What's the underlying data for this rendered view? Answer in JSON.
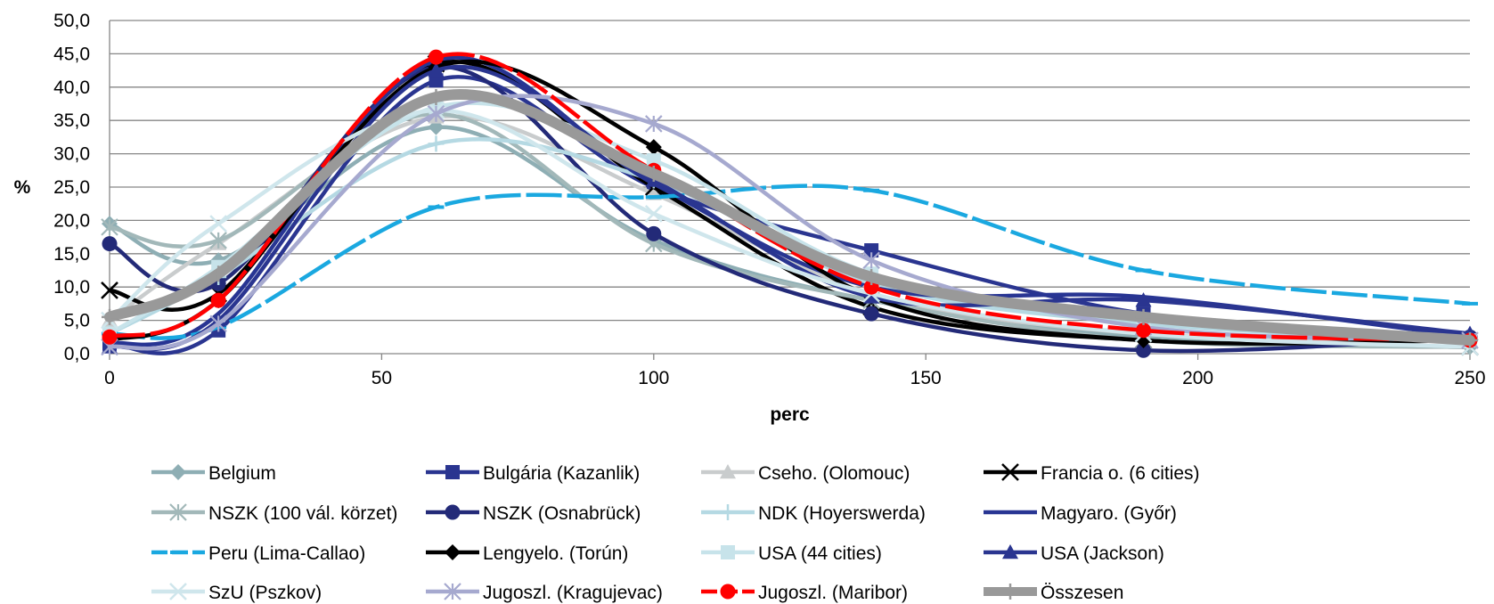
{
  "chart_data": {
    "type": "line",
    "title": "",
    "xlabel": "perc",
    "ylabel": "%",
    "xlim": [
      0,
      250
    ],
    "ylim": [
      0,
      50
    ],
    "x_ticks": [
      0,
      50,
      100,
      150,
      200,
      250
    ],
    "y_ticks": [
      "0,0",
      "5,0",
      "10,0",
      "15,0",
      "20,0",
      "25,0",
      "30,0",
      "35,0",
      "40,0",
      "45,0",
      "50,0"
    ],
    "grid": "horizontal",
    "legend_position": "bottom",
    "x": [
      0,
      20,
      60,
      100,
      140,
      190,
      250
    ],
    "series": [
      {
        "name": "Belgium",
        "color": "#8eaeb4",
        "marker": "diamond",
        "values": [
          19.5,
          14.0,
          34.0,
          17.0,
          8.0,
          2.5,
          1.0
        ]
      },
      {
        "name": "Bulgária (Kazanlik)",
        "color": "#2a3590",
        "marker": "square",
        "values": [
          1.5,
          3.5,
          41.0,
          25.0,
          15.5,
          6.0,
          2.0
        ]
      },
      {
        "name": "Cseho. (Olomouc)",
        "color": "#c9cccd",
        "marker": "triangle",
        "values": [
          5.0,
          16.5,
          35.5,
          24.0,
          9.0,
          3.0,
          2.0
        ]
      },
      {
        "name": "Francia o. (6 cities)",
        "color": "#000000",
        "marker": "x",
        "values": [
          9.5,
          9.0,
          43.5,
          25.0,
          7.0,
          2.0,
          1.0
        ]
      },
      {
        "name": "NSZK (100 vál. körzet)",
        "color": "#a2b8b9",
        "marker": "asterisk",
        "values": [
          19.0,
          17.0,
          36.0,
          16.5,
          8.0,
          2.0,
          1.0
        ]
      },
      {
        "name": "NSZK (Osnabrück)",
        "color": "#232a78",
        "marker": "circle",
        "values": [
          16.5,
          10.5,
          43.0,
          18.0,
          6.0,
          0.5,
          2.5
        ]
      },
      {
        "name": "NDK (Hoyerswerda)",
        "color": "#b5d9e3",
        "marker": "plus",
        "values": [
          3.0,
          11.5,
          31.5,
          26.0,
          10.5,
          4.5,
          2.0
        ]
      },
      {
        "name": "Magyaro. (Győr)",
        "color": "#283593",
        "marker": "none",
        "values": [
          1.5,
          6.0,
          44.0,
          25.5,
          10.0,
          8.5,
          2.5
        ]
      },
      {
        "name": "Peru (Lima-Callao)",
        "color": "#1aa8e0",
        "marker": "dash",
        "dash": "40 6",
        "values": [
          3.0,
          4.0,
          22.0,
          23.5,
          24.5,
          12.5,
          7.5
        ]
      },
      {
        "name": "Lengyelo. (Torún)",
        "color": "#000000",
        "marker": "diamond",
        "values": [
          2.0,
          8.0,
          43.0,
          31.0,
          8.5,
          2.0,
          2.0
        ]
      },
      {
        "name": "USA (44 cities)",
        "color": "#c7e3ea",
        "marker": "square",
        "values": [
          3.0,
          13.0,
          37.0,
          29.0,
          12.0,
          5.0,
          2.0
        ]
      },
      {
        "name": "USA (Jackson)",
        "color": "#2a3590",
        "marker": "triangle",
        "values": [
          1.0,
          5.0,
          42.5,
          26.0,
          8.5,
          8.0,
          3.0
        ]
      },
      {
        "name": "SzU (Pszkov)",
        "color": "#cfe6ec",
        "marker": "x",
        "values": [
          5.0,
          19.5,
          36.5,
          21.0,
          9.0,
          3.0,
          1.0
        ]
      },
      {
        "name": "Jugoszl. (Kragujevac)",
        "color": "#a6a9cf",
        "marker": "asterisk",
        "values": [
          1.0,
          4.5,
          36.0,
          34.5,
          14.0,
          4.0,
          2.0
        ]
      },
      {
        "name": "Jugoszl. (Maribor)",
        "color": "#ff0000",
        "marker": "circle",
        "dash": "40 6",
        "values": [
          2.5,
          8.0,
          44.5,
          27.5,
          10.0,
          3.5,
          2.0
        ]
      },
      {
        "name": "Összesen",
        "color": "#999999",
        "marker": "plus",
        "width": 12,
        "values": [
          5.5,
          12.0,
          38.5,
          27.0,
          11.5,
          5.5,
          2.0
        ]
      }
    ]
  }
}
